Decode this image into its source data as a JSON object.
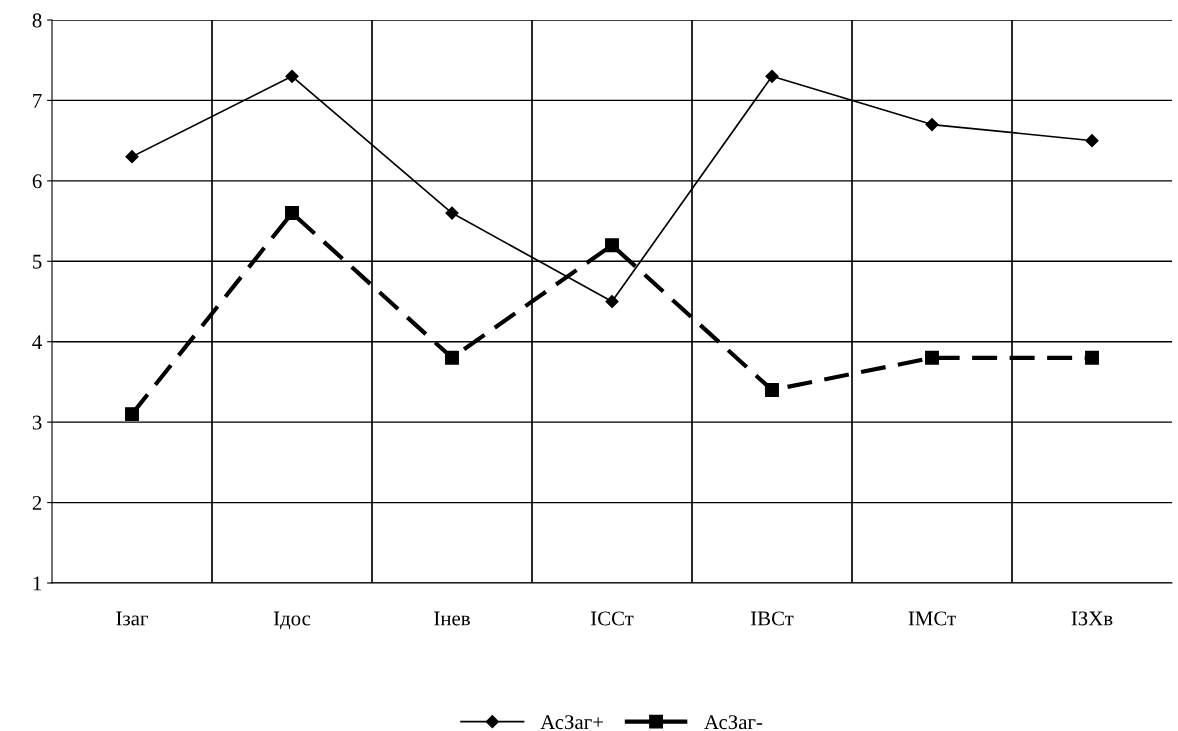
{
  "chart_data": {
    "type": "line",
    "categories": [
      "Ізаг",
      "Ідос",
      "Інев",
      "ІССт",
      "ІВСт",
      "ІМСт",
      "ІЗХв"
    ],
    "series": [
      {
        "name": "АсЗаг+",
        "color": "#000000",
        "marker": "diamond",
        "line_style": "solid",
        "values": [
          6.3,
          7.3,
          5.6,
          4.5,
          7.3,
          6.7,
          6.5
        ]
      },
      {
        "name": "АсЗаг-",
        "color": "#000000",
        "marker": "square",
        "line_style": "dashed",
        "values": [
          3.1,
          5.6,
          3.8,
          5.2,
          3.4,
          3.8,
          3.8
        ]
      }
    ],
    "ylim": [
      1,
      8
    ],
    "yticks": [
      1,
      2,
      3,
      4,
      5,
      6,
      7,
      8
    ],
    "grid": true,
    "legend": "bottom"
  }
}
